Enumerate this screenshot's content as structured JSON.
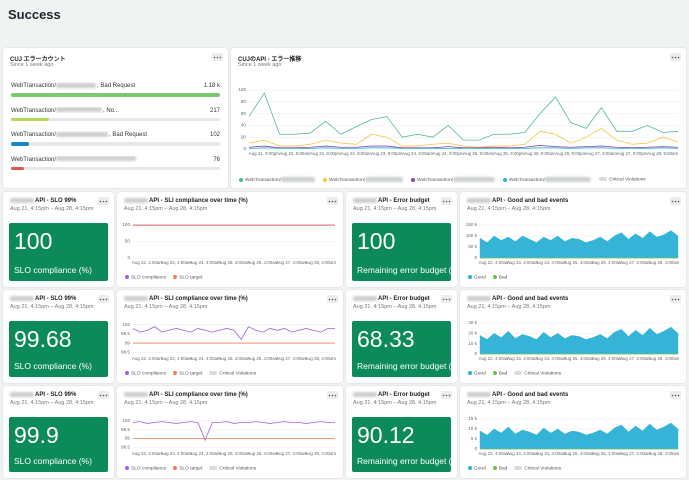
{
  "page": {
    "title": "Success"
  },
  "time_axis": {
    "categories": [
      null,
      null,
      "Aug 22, 4:00am",
      null,
      null,
      null,
      "Aug 23, 4:00am",
      null,
      null,
      null,
      "Aug 24, 4:00am",
      null,
      null,
      null,
      "Aug 25, 4:00am",
      null,
      null,
      null,
      "Aug 26, 4:00am",
      null,
      null,
      null,
      "Aug 27, 4:00am",
      null,
      null,
      null,
      "Aug 28, 4:00am",
      null,
      null
    ]
  },
  "widgets": [
    {
      "type": "bar_list",
      "title": "CUJ エラーカウント",
      "subtitle": "Since 1 week ago",
      "items": [
        {
          "label_start": "WebTransaction/",
          "label_end": ", Bad Request",
          "value": 1180,
          "value_label": "1.18 k",
          "color": "#7ac96e"
        },
        {
          "label_start": "WebTransaction/",
          "label_end": ", No...",
          "value": 217,
          "color": "#b9d65a"
        },
        {
          "label_start": "WebTransaction/",
          "label_end": ", Bad Request",
          "value": 102,
          "color": "#1a87c2"
        },
        {
          "label_start": "WebTransaction/",
          "value": 76,
          "color": "#e0574f"
        }
      ]
    },
    {
      "type": "line",
      "title": "CUJのAPI - エラー推移",
      "subtitle": "Since 1 week ago",
      "categories": [
        null,
        "Aug 21, 9:00pm",
        null,
        "Aug 22, 9:00am",
        null,
        "Aug 22, 9:00pm",
        null,
        "Aug 23, 9:00am",
        null,
        "Aug 23, 9:00pm",
        null,
        "Aug 24, 9:00am",
        null,
        "Aug 24, 9:00pm",
        null,
        "Aug 25, 9:00am",
        null,
        "Aug 25, 9:00pm",
        null,
        "Aug 26, 9:00am",
        null,
        "Aug 26, 9:00pm",
        null,
        "Aug 27, 9:00am",
        null,
        "Aug 27, 9:00pm",
        null,
        "Aug 28, 9:00am",
        null
      ],
      "series": [
        {
          "name": "WebTransaction/",
          "color": "#4fb99f",
          "values": [
            55,
            95,
            25,
            25,
            27,
            47,
            25,
            38,
            50,
            55,
            20,
            25,
            20,
            40,
            15,
            15,
            25,
            25,
            28,
            60,
            88,
            45,
            35,
            70,
            30,
            30,
            40,
            28,
            30
          ]
        },
        {
          "name": "WebTransaction/",
          "color": "#f5c542",
          "values": [
            10,
            15,
            5,
            5,
            8,
            15,
            10,
            8,
            25,
            20,
            5,
            5,
            8,
            10,
            5,
            3,
            5,
            5,
            8,
            30,
            25,
            10,
            20,
            35,
            15,
            8,
            10,
            20,
            12
          ]
        },
        {
          "name": "WebTransaction/",
          "color": "#8e44ad",
          "values": [
            3,
            5,
            2,
            2,
            3,
            5,
            3,
            3,
            5,
            5,
            2,
            2,
            2,
            4,
            2,
            2,
            3,
            2,
            3,
            6,
            4,
            3,
            4,
            5,
            3,
            2,
            3,
            4,
            3
          ]
        },
        {
          "name": "WebTransaction/",
          "color": "#29b6d8",
          "values": [
            1,
            2,
            1,
            1,
            1,
            2,
            1,
            1,
            2,
            2,
            1,
            1,
            1,
            1,
            1,
            1,
            1,
            1,
            1,
            2,
            2,
            1,
            2,
            2,
            1,
            1,
            1,
            2,
            1
          ]
        }
      ],
      "ylim": [
        0,
        100
      ],
      "yticks": [
        0,
        20,
        40,
        60,
        80,
        100
      ],
      "legend_redacted": true,
      "critical_violations": "Critical Violations"
    },
    {
      "type": "billboard",
      "title": "API - SLO 99%",
      "subtitle": "Aug 21, 4:15pm – Aug 28, 4:15pm",
      "redacted_prefix": true,
      "value": 100,
      "label": "SLO compliance (%)",
      "color": "#0c8a5a"
    },
    {
      "type": "line",
      "title": "API - SLI compliance over time (%)",
      "subtitle": "Aug 21, 4:15pm – Aug 28, 4:15pm",
      "redacted_prefix": true,
      "series": [
        {
          "name": "SLO compliance",
          "color": "#a05ee0",
          "values": [
            100,
            100,
            100,
            100,
            100,
            100,
            100,
            100,
            100,
            100,
            100,
            100,
            100,
            100,
            100,
            100,
            100,
            100,
            100,
            100,
            100,
            100,
            100,
            100,
            100,
            100,
            100,
            100,
            100
          ]
        },
        {
          "name": "SLO target",
          "color": "#f07e56",
          "values": [
            99,
            99,
            99,
            99,
            99,
            99,
            99,
            99,
            99,
            99,
            99,
            99,
            99,
            99,
            99,
            99,
            99,
            99,
            99,
            99,
            99,
            99,
            99,
            99,
            99,
            99,
            99,
            99,
            99
          ]
        }
      ],
      "ylim": [
        0,
        100
      ],
      "yticks": [
        0,
        50,
        100
      ]
    },
    {
      "type": "billboard",
      "title": "API - Error budget",
      "subtitle": "Aug 21, 4:15pm – Aug 28, 4:15pm",
      "redacted_prefix": true,
      "value": 100,
      "label": "Remaining error budget (%)",
      "color": "#0c8a5a"
    },
    {
      "type": "area",
      "title": "API - Good and bad events",
      "subtitle": "Aug 21, 4:15pm – Aug 28, 4:15pm",
      "redacted_prefix": true,
      "series": [
        {
          "name": "Good",
          "color": "#2ab0d6",
          "values": [
            90000,
            70000,
            100000,
            80000,
            95000,
            75000,
            100000,
            85000,
            70000,
            95000,
            80000,
            100000,
            75000,
            90000,
            85000,
            70000,
            80000,
            95000,
            75000,
            100000,
            115000,
            85000,
            110000,
            90000,
            120000,
            95000,
            105000,
            125000,
            100000
          ]
        },
        {
          "name": "Bad",
          "color": "#6cc24a",
          "values": [
            400,
            300,
            500,
            350,
            450,
            300,
            400,
            350,
            300,
            450,
            350,
            400,
            300,
            400,
            350,
            300,
            350,
            400,
            300,
            450,
            500,
            350,
            450,
            400,
            500,
            400,
            450,
            500,
            400
          ]
        }
      ],
      "ylim": [
        0,
        150000
      ],
      "yticks": [
        0,
        {
          "value": 50000,
          "label": "50 k"
        },
        {
          "value": 100000,
          "label": "100 k"
        },
        {
          "value": 150000,
          "label": "150 k"
        }
      ]
    },
    {
      "type": "billboard",
      "title": "API - SLO 99%",
      "subtitle": "Aug 21, 4:15pm – Aug 28, 4:15pm",
      "redacted_prefix": true,
      "value": 99.68,
      "label": "SLO compliance (%)",
      "color": "#0c8a5a"
    },
    {
      "type": "line",
      "title": "API - SLI compliance over time (%)",
      "subtitle": "Aug 21, 4:15pm – Aug 28, 4:15pm",
      "redacted_prefix": true,
      "series": [
        {
          "name": "SLO compliance",
          "color": "#a05ee0",
          "values": [
            99.8,
            99.6,
            99.7,
            99.9,
            99.6,
            99.7,
            99.8,
            99.7,
            99.6,
            99.8,
            99.7,
            99.6,
            99.7,
            99.8,
            99.7,
            99.2,
            99.9,
            99.7,
            99.6,
            99.8,
            99.7,
            99.8,
            99.6,
            99.7,
            99.8,
            99.7,
            99.6,
            99.8,
            99.8
          ]
        },
        {
          "name": "SLO target",
          "color": "#f07e56",
          "values": [
            99,
            99,
            99,
            99,
            99,
            99,
            99,
            99,
            99,
            99,
            99,
            99,
            99,
            99,
            99,
            99,
            99,
            99,
            99,
            99,
            99,
            99,
            99,
            99,
            99,
            99,
            99,
            99,
            99
          ]
        }
      ],
      "ylim": [
        98.4,
        100.1
      ],
      "yticks": [
        98.5,
        99,
        99.5,
        100
      ],
      "critical_violations": "Critical Violations"
    },
    {
      "type": "billboard",
      "title": "API - Error budget",
      "subtitle": "Aug 21, 4:15pm – Aug 28, 4:15pm",
      "redacted_prefix": true,
      "value": 68.33,
      "label": "Remaining error budget (%)",
      "color": "#0c8a5a"
    },
    {
      "type": "area",
      "title": "API - Good and bad events",
      "subtitle": "Aug 21, 4:15pm – Aug 28, 4:15pm",
      "redacted_prefix": true,
      "series": [
        {
          "name": "Good",
          "color": "#2ab0d6",
          "values": [
            18000,
            14000,
            20000,
            16000,
            22000,
            15000,
            19000,
            17000,
            14000,
            21000,
            16000,
            20000,
            15000,
            18000,
            17000,
            14000,
            16000,
            19000,
            15000,
            21000,
            24000,
            17000,
            23000,
            18000,
            25000,
            19000,
            22000,
            26000,
            20000
          ]
        },
        {
          "name": "Bad",
          "color": "#6cc24a",
          "values": [
            80,
            60,
            100,
            70,
            90,
            60,
            80,
            70,
            60,
            90,
            70,
            80,
            60,
            80,
            70,
            60,
            70,
            80,
            60,
            90,
            100,
            70,
            90,
            80,
            100,
            80,
            90,
            100,
            80
          ]
        }
      ],
      "ylim": [
        0,
        30000
      ],
      "yticks": [
        0,
        {
          "value": 10000,
          "label": "10 k"
        },
        {
          "value": 20000,
          "label": "20 k"
        },
        {
          "value": 30000,
          "label": "30 k"
        }
      ],
      "critical_violations": "Critical Violations"
    },
    {
      "type": "billboard",
      "title": "API - SLO 99%",
      "subtitle": "Aug 21, 4:15pm – Aug 28, 4:15pm",
      "redacted_prefix": true,
      "value": 99.9,
      "label": "SLO compliance (%)",
      "color": "#0c8a5a"
    },
    {
      "type": "line",
      "title": "API - SLI compliance over time (%)",
      "subtitle": "Aug 21, 4:15pm – Aug 28, 4:15pm",
      "redacted_prefix": true,
      "series": [
        {
          "name": "SLO compliance",
          "color": "#a05ee0",
          "values": [
            99.9,
            99.95,
            99.85,
            99.9,
            99.95,
            99.9,
            99.85,
            99.9,
            99.95,
            99.9,
            98.9,
            99.9,
            99.9,
            99.95,
            99.85,
            99.9,
            99.9,
            99.95,
            99.9,
            99.85,
            99.9,
            99.95,
            99.9,
            99.9,
            99.85,
            99.9,
            99.95,
            99.9,
            99.9
          ]
        },
        {
          "name": "SLO target",
          "color": "#f07e56",
          "values": [
            99,
            99,
            99,
            99,
            99,
            99,
            99,
            99,
            99,
            99,
            99,
            99,
            99,
            99,
            99,
            99,
            99,
            99,
            99,
            99,
            99,
            99,
            99,
            99,
            99,
            99,
            99,
            99,
            99
          ]
        }
      ],
      "ylim": [
        98.4,
        100.1
      ],
      "yticks": [
        98.5,
        99,
        99.5,
        100
      ],
      "critical_violations": "Critical Violations"
    },
    {
      "type": "billboard",
      "title": "API - Error budget",
      "subtitle": "Aug 21, 4:15pm – Aug 28, 4:15pm",
      "redacted_prefix": true,
      "value": 90.12,
      "label": "Remaining error budget (%)",
      "color": "#0c8a5a"
    },
    {
      "type": "area",
      "title": "API - Good and bad events",
      "subtitle": "Aug 21, 4:15pm – Aug 28, 4:15pm",
      "redacted_prefix": true,
      "series": [
        {
          "name": "Good",
          "color": "#2ab0d6",
          "values": [
            9000,
            7000,
            10000,
            8000,
            11000,
            7500,
            9500,
            8500,
            7000,
            10500,
            8000,
            10000,
            7500,
            9000,
            8500,
            7000,
            8000,
            9500,
            7500,
            10500,
            12000,
            8500,
            11500,
            9000,
            12500,
            9500,
            11000,
            13000,
            10000
          ]
        },
        {
          "name": "Bad",
          "color": "#6cc24a",
          "values": [
            40,
            30,
            50,
            35,
            45,
            30,
            40,
            35,
            30,
            45,
            35,
            40,
            30,
            40,
            35,
            30,
            35,
            40,
            30,
            45,
            50,
            35,
            45,
            40,
            50,
            40,
            45,
            50,
            40
          ]
        }
      ],
      "ylim": [
        0,
        15000
      ],
      "yticks": [
        0,
        {
          "value": 5000,
          "label": "5 k"
        },
        {
          "value": 10000,
          "label": "10 k"
        },
        {
          "value": 15000,
          "label": "15 k"
        }
      ],
      "critical_violations": "Critical Violations"
    }
  ]
}
